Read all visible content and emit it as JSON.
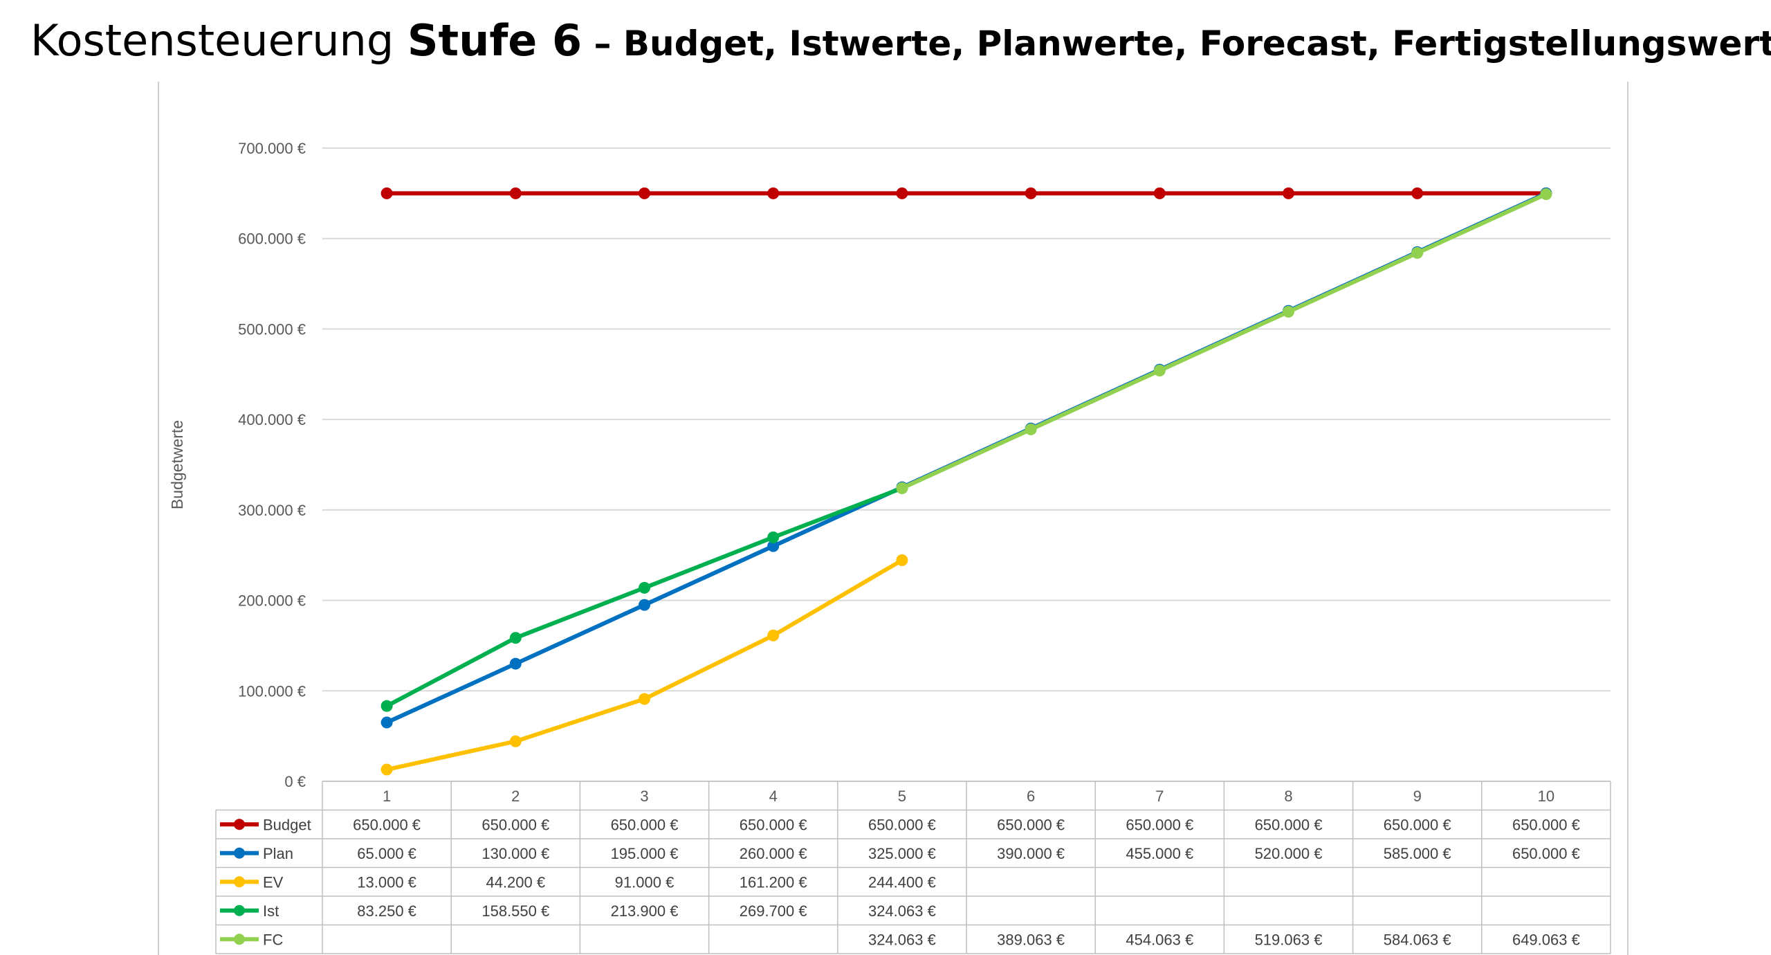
{
  "title": {
    "part1": "Kostensteuerung ",
    "part2": "Stufe 6",
    "part3": " – Budget, Istwerte, Planwerte, Forecast, Fertigstellungswert"
  },
  "chart_data": {
    "type": "line",
    "ylabel": "Budgetwerte",
    "ylim": [
      0,
      700000
    ],
    "yticks": [
      0,
      100000,
      200000,
      300000,
      400000,
      500000,
      600000,
      700000
    ],
    "ytick_labels": [
      "0 €",
      "100.000 €",
      "200.000 €",
      "300.000 €",
      "400.000 €",
      "500.000 €",
      "600.000 €",
      "700.000 €"
    ],
    "categories": [
      "1",
      "2",
      "3",
      "4",
      "5",
      "6",
      "7",
      "8",
      "9",
      "10"
    ],
    "grid": true,
    "legend": "data-table",
    "series": [
      {
        "name": "Budget",
        "color": "#C00000",
        "values": [
          650000,
          650000,
          650000,
          650000,
          650000,
          650000,
          650000,
          650000,
          650000,
          650000
        ],
        "labels": [
          "650.000 €",
          "650.000 €",
          "650.000 €",
          "650.000 €",
          "650.000 €",
          "650.000 €",
          "650.000 €",
          "650.000 €",
          "650.000 €",
          "650.000 €"
        ]
      },
      {
        "name": "Plan",
        "color": "#0070C0",
        "values": [
          65000,
          130000,
          195000,
          260000,
          325000,
          390000,
          455000,
          520000,
          585000,
          650000
        ],
        "labels": [
          "65.000 €",
          "130.000 €",
          "195.000 €",
          "260.000 €",
          "325.000 €",
          "390.000 €",
          "455.000 €",
          "520.000 €",
          "585.000 €",
          "650.000 €"
        ]
      },
      {
        "name": "EV",
        "color": "#FFC000",
        "values": [
          13000,
          44200,
          91000,
          161200,
          244400,
          null,
          null,
          null,
          null,
          null
        ],
        "labels": [
          "13.000 €",
          "44.200 €",
          "91.000 €",
          "161.200 €",
          "244.400 €",
          "",
          "",
          "",
          "",
          ""
        ]
      },
      {
        "name": "Ist",
        "color": "#00B050",
        "values": [
          83250,
          158550,
          213900,
          269700,
          324063,
          null,
          null,
          null,
          null,
          null
        ],
        "labels": [
          "83.250 €",
          "158.550 €",
          "213.900 €",
          "269.700 €",
          "324.063 €",
          "",
          "",
          "",
          "",
          ""
        ]
      },
      {
        "name": "FC",
        "color": "#92D050",
        "values": [
          null,
          null,
          null,
          null,
          324063,
          389063,
          454063,
          519063,
          584063,
          649063
        ],
        "labels": [
          "",
          "",
          "",
          "",
          "324.063 €",
          "389.063 €",
          "454.063 €",
          "519.063 €",
          "584.063 €",
          "649.063 €"
        ]
      }
    ]
  }
}
